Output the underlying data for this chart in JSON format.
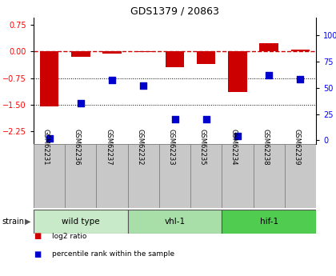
{
  "title": "GDS1379 / 20863",
  "samples": [
    "GSM62231",
    "GSM62236",
    "GSM62237",
    "GSM62232",
    "GSM62233",
    "GSM62235",
    "GSM62234",
    "GSM62238",
    "GSM62239"
  ],
  "log2_ratio": [
    -1.55,
    -0.15,
    -0.05,
    -0.02,
    -0.45,
    -0.35,
    -1.15,
    0.22,
    0.05
  ],
  "percentile": [
    2,
    35,
    57,
    52,
    20,
    20,
    4,
    62,
    58
  ],
  "groups": [
    {
      "label": "wild type",
      "start": 0,
      "end": 3,
      "color": "#c8eac8"
    },
    {
      "label": "vhl-1",
      "start": 3,
      "end": 6,
      "color": "#a8dea8"
    },
    {
      "label": "hif-1",
      "start": 6,
      "end": 9,
      "color": "#50cc50"
    }
  ],
  "bar_color": "#cc0000",
  "dot_color": "#0000cc",
  "ylim_left": [
    -2.6,
    0.95
  ],
  "ylim_right": [
    -3.47,
    116.7
  ],
  "yticks_left": [
    0.75,
    0.0,
    -0.75,
    -1.5,
    -2.25
  ],
  "yticks_right": [
    100,
    75,
    50,
    25,
    0
  ],
  "hlines": [
    -0.75,
    -1.5
  ],
  "hline0_color": "#cc0000",
  "hline0_style": "--",
  "hline_dot_color": "black",
  "hline_dot_style": ":",
  "legend_items": [
    {
      "label": "log2 ratio",
      "color": "#cc0000"
    },
    {
      "label": "percentile rank within the sample",
      "color": "#0000cc"
    }
  ],
  "strain_label": "strain",
  "sample_cell_color": "#c8c8c8",
  "bar_width": 0.6,
  "dot_size": 30
}
